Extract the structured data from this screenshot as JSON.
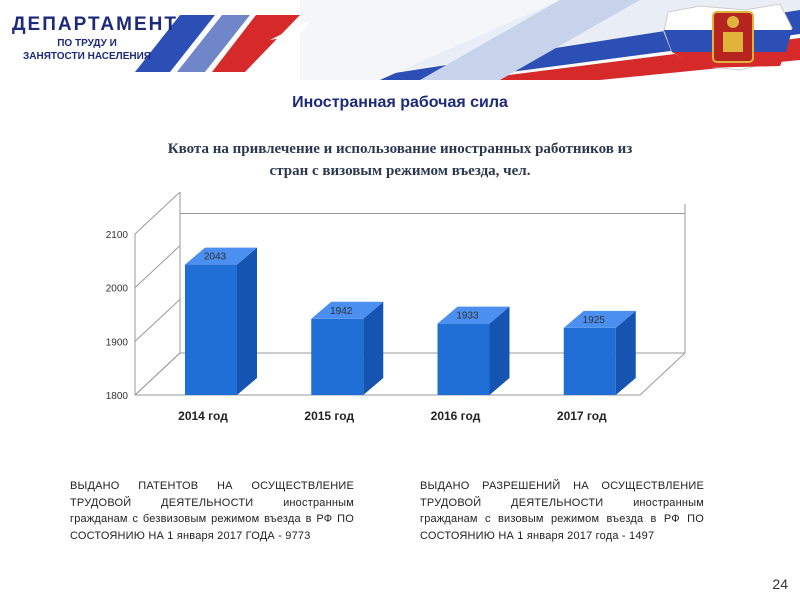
{
  "header": {
    "logo_line1": "ДЕПАРТАМЕНТ",
    "logo_line2": "ПО ТРУДУ И",
    "logo_line3": "ЗАНЯТОСТИ НАСЕЛЕНИЯ"
  },
  "page_title": "Иностранная рабочая сила",
  "chart_data": {
    "type": "bar",
    "title": "Квота на привлечение и использование иностранных работников из стран с визовым режимом въезда, чел.",
    "categories": [
      "2014 год",
      "2015 год",
      "2016 год",
      "2017 год"
    ],
    "values": [
      2043,
      1942,
      1933,
      1925
    ],
    "ylim": [
      1800,
      2100
    ],
    "yticks": [
      1800,
      1900,
      2000,
      2100
    ],
    "grid": false,
    "legend": "none",
    "bar_color": "#1f6fd6"
  },
  "info_left": "ВЫДАНО ПАТЕНТОВ НА ОСУЩЕСТВЛЕНИЕ ТРУДОВОЙ ДЕЯТЕЛЬНОСТИ иностранным гражданам с безвизовым режимом въезда в РФ ПО СОСТОЯНИЮ НА 1 января 2017 ГОДА - 9773",
  "info_right": "ВЫДАНО РАЗРЕШЕНИЙ НА ОСУЩЕСТВЛЕНИЕ ТРУДОВОЙ ДЕЯТЕЛЬНОСТИ иностранным гражданам с визовым режимом въезда в РФ ПО СОСТОЯНИЮ НА 1 января 2017 года - 1497",
  "page_number": "24"
}
